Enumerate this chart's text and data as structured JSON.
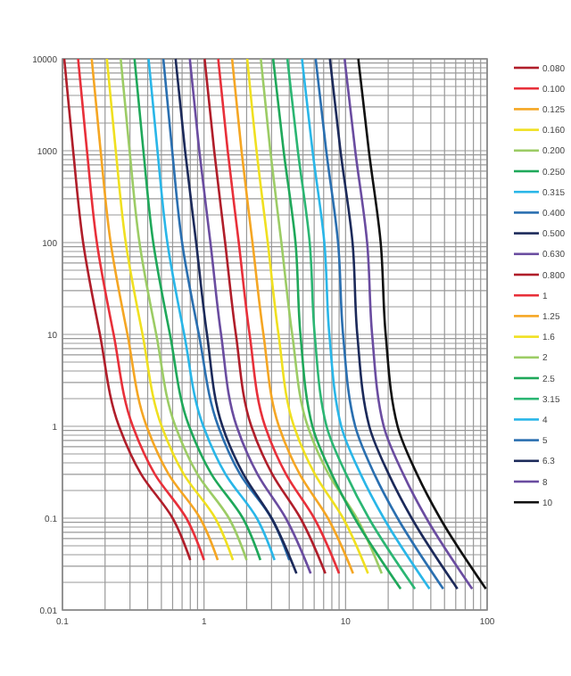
{
  "chart_data": {
    "type": "line",
    "log": "xy",
    "grid": true,
    "legend": "right",
    "line_style": "solid",
    "xlim": [
      0.1,
      100
    ],
    "ylim": [
      0.01,
      10000
    ],
    "xticks": [
      {
        "value": 0.1,
        "label": "0.1"
      },
      {
        "value": 0.2,
        "label": null
      },
      {
        "value": 0.3,
        "label": null
      },
      {
        "value": 0.4,
        "label": null
      },
      {
        "value": 0.5,
        "label": null
      },
      {
        "value": 0.6,
        "label": null
      },
      {
        "value": 0.7,
        "label": null
      },
      {
        "value": 0.8,
        "label": null
      },
      {
        "value": 0.9,
        "label": null
      },
      1,
      {
        "value": 2,
        "label": null
      },
      {
        "value": 3,
        "label": null
      },
      {
        "value": 4,
        "label": null
      },
      {
        "value": 5,
        "label": null
      },
      {
        "value": 6,
        "label": null
      },
      {
        "value": 7,
        "label": null
      },
      {
        "value": 8,
        "label": null
      },
      {
        "value": 9,
        "label": null
      },
      10,
      {
        "value": 20,
        "label": null
      },
      {
        "value": 30,
        "label": null
      },
      {
        "value": 40,
        "label": null
      },
      {
        "value": 50,
        "label": null
      },
      {
        "value": 60,
        "label": null
      },
      {
        "value": 70,
        "label": null
      },
      {
        "value": 80,
        "label": null
      },
      {
        "value": 90,
        "label": null
      },
      100
    ],
    "yticks": [
      {
        "value": 0.01,
        "label": "0.01"
      },
      {
        "value": 0.02,
        "label": null
      },
      {
        "value": 0.03,
        "label": null
      },
      {
        "value": 0.04,
        "label": null
      },
      {
        "value": 0.05,
        "label": null
      },
      {
        "value": 0.06,
        "label": null
      },
      {
        "value": 0.07,
        "label": null
      },
      {
        "value": 0.08,
        "label": null
      },
      {
        "value": 0.09,
        "label": null
      },
      {
        "value": 0.1,
        "label": "0.1"
      },
      {
        "value": 0.2,
        "label": null
      },
      {
        "value": 0.3,
        "label": null
      },
      {
        "value": 0.4,
        "label": null
      },
      {
        "value": 0.5,
        "label": null
      },
      {
        "value": 0.6,
        "label": null
      },
      {
        "value": 0.7,
        "label": null
      },
      {
        "value": 0.8,
        "label": null
      },
      {
        "value": 0.9,
        "label": null
      },
      1,
      {
        "value": 2,
        "label": null
      },
      {
        "value": 3,
        "label": null
      },
      {
        "value": 4,
        "label": null
      },
      {
        "value": 5,
        "label": null
      },
      {
        "value": 6,
        "label": null
      },
      {
        "value": 7,
        "label": null
      },
      {
        "value": 8,
        "label": null
      },
      {
        "value": 9,
        "label": null
      },
      10,
      {
        "value": 20,
        "label": null
      },
      {
        "value": 30,
        "label": null
      },
      {
        "value": 40,
        "label": null
      },
      {
        "value": 50,
        "label": null
      },
      {
        "value": 60,
        "label": null
      },
      {
        "value": 70,
        "label": null
      },
      {
        "value": 80,
        "label": null
      },
      {
        "value": 90,
        "label": null
      },
      100,
      {
        "value": 200,
        "label": null
      },
      {
        "value": 300,
        "label": null
      },
      {
        "value": 400,
        "label": null
      },
      {
        "value": 500,
        "label": null
      },
      {
        "value": 600,
        "label": null
      },
      {
        "value": 700,
        "label": null
      },
      {
        "value": 800,
        "label": null
      },
      {
        "value": 900,
        "label": null
      },
      1000,
      {
        "value": 2000,
        "label": null
      },
      {
        "value": 3000,
        "label": null
      },
      {
        "value": 4000,
        "label": null
      },
      {
        "value": 5000,
        "label": null
      },
      {
        "value": 6000,
        "label": null
      },
      {
        "value": 7000,
        "label": null
      },
      {
        "value": 8000,
        "label": null
      },
      {
        "value": 9000,
        "label": null
      },
      10000
    ],
    "series": [
      {
        "name": "0.080",
        "color": "#b01e2a",
        "x": [
          0.103,
          0.119,
          0.14,
          0.184,
          0.251,
          0.36,
          0.6,
          0.8
        ],
        "values": [
          10000,
          1000,
          100,
          10,
          1,
          0.3,
          0.1,
          0.035
        ]
      },
      {
        "name": "0.100",
        "color": "#e8303a",
        "x": [
          0.129,
          0.149,
          0.175,
          0.23,
          0.314,
          0.45,
          0.75,
          1.0
        ],
        "values": [
          10000,
          1000,
          100,
          10,
          1,
          0.3,
          0.1,
          0.035
        ]
      },
      {
        "name": "0.125",
        "color": "#f5a623",
        "x": [
          0.161,
          0.186,
          0.219,
          0.288,
          0.393,
          0.563,
          0.938,
          1.25
        ],
        "values": [
          10000,
          1000,
          100,
          10,
          1,
          0.3,
          0.1,
          0.035
        ]
      },
      {
        "name": "0.160",
        "color": "#f0e020",
        "x": [
          0.206,
          0.238,
          0.28,
          0.368,
          0.502,
          0.72,
          1.2,
          1.6
        ],
        "values": [
          10000,
          1000,
          100,
          10,
          1,
          0.3,
          0.1,
          0.035
        ]
      },
      {
        "name": "0.200",
        "color": "#9ccc65",
        "x": [
          0.258,
          0.298,
          0.35,
          0.46,
          0.628,
          0.9,
          1.5,
          2
        ],
        "values": [
          10000,
          1000,
          100,
          10,
          1,
          0.3,
          0.1,
          0.035
        ]
      },
      {
        "name": "0.250",
        "color": "#1fa85a",
        "x": [
          0.323,
          0.373,
          0.438,
          0.575,
          0.785,
          1.13,
          1.88,
          2.5
        ],
        "values": [
          10000,
          1000,
          100,
          10,
          1,
          0.3,
          0.1,
          0.035
        ]
      },
      {
        "name": "0.315",
        "color": "#29b6e8",
        "x": [
          0.406,
          0.469,
          0.551,
          0.725,
          0.989,
          1.42,
          2.36,
          3.15
        ],
        "values": [
          10000,
          1000,
          100,
          10,
          1,
          0.3,
          0.1,
          0.035
        ]
      },
      {
        "name": "0.400",
        "color": "#2a6fb0",
        "x": [
          0.516,
          0.596,
          0.7,
          0.92,
          1.26,
          1.8,
          3,
          4
        ],
        "values": [
          10000,
          1000,
          100,
          10,
          1,
          0.3,
          0.1,
          0.035
        ]
      },
      {
        "name": "0.500",
        "color": "#1c2a5a",
        "x": [
          0.63,
          0.735,
          0.88,
          1.05,
          1.35,
          1.9,
          3,
          4.5
        ],
        "values": [
          10000,
          1000,
          100,
          10,
          1,
          0.3,
          0.1,
          0.025
        ]
      },
      {
        "name": "0.630",
        "color": "#6a4ca0",
        "x": [
          0.794,
          0.926,
          1.11,
          1.32,
          1.7,
          2.39,
          3.78,
          5.67
        ],
        "values": [
          10000,
          1000,
          100,
          10,
          1,
          0.3,
          0.1,
          0.025
        ]
      },
      {
        "name": "0.800",
        "color": "#b01e2a",
        "x": [
          1.01,
          1.18,
          1.41,
          1.68,
          2.16,
          3.04,
          4.8,
          7.2
        ],
        "values": [
          10000,
          1000,
          100,
          10,
          1,
          0.3,
          0.1,
          0.025
        ]
      },
      {
        "name": "1",
        "color": "#e8303a",
        "x": [
          1.26,
          1.47,
          1.76,
          2.1,
          2.7,
          3.8,
          6,
          9
        ],
        "values": [
          10000,
          1000,
          100,
          10,
          1,
          0.3,
          0.1,
          0.025
        ]
      },
      {
        "name": "1.25",
        "color": "#f5a623",
        "x": [
          1.58,
          1.84,
          2.2,
          2.63,
          3.38,
          4.75,
          7.5,
          11.3
        ],
        "values": [
          10000,
          1000,
          100,
          10,
          1,
          0.3,
          0.1,
          0.025
        ]
      },
      {
        "name": "1.6",
        "color": "#f0e020",
        "x": [
          2.02,
          2.35,
          2.82,
          3.36,
          4.32,
          6.08,
          9.6,
          14.4
        ],
        "values": [
          10000,
          1000,
          100,
          10,
          1,
          0.3,
          0.1,
          0.025
        ]
      },
      {
        "name": "2",
        "color": "#9ccc65",
        "x": [
          2.52,
          2.94,
          3.52,
          4.2,
          5.4,
          7.6,
          12,
          18
        ],
        "values": [
          10000,
          1000,
          100,
          10,
          1,
          0.3,
          0.1,
          0.025
        ]
      },
      {
        "name": "2.5",
        "color": "#1fa85a",
        "x": [
          3.08,
          3.65,
          4.43,
          4.8,
          5.83,
          8,
          11.6,
          24.5
        ],
        "values": [
          10000,
          1000,
          100,
          10,
          1,
          0.3,
          0.1,
          0.017
        ]
      },
      {
        "name": "3.15",
        "color": "#2bb673",
        "x": [
          3.88,
          4.6,
          5.58,
          6.05,
          7.34,
          10.1,
          14.6,
          30.9
        ],
        "values": [
          10000,
          1000,
          100,
          10,
          1,
          0.3,
          0.1,
          0.017
        ]
      },
      {
        "name": "4",
        "color": "#29b6e8",
        "x": [
          4.92,
          5.84,
          7.08,
          7.68,
          9.32,
          12.8,
          18.6,
          39.2
        ],
        "values": [
          10000,
          1000,
          100,
          10,
          1,
          0.3,
          0.1,
          0.017
        ]
      },
      {
        "name": "5",
        "color": "#2a6fb0",
        "x": [
          6.15,
          7.3,
          8.85,
          9.6,
          11.7,
          16,
          23.3,
          49
        ],
        "values": [
          10000,
          1000,
          100,
          10,
          1,
          0.3,
          0.1,
          0.017
        ]
      },
      {
        "name": "6.3",
        "color": "#1c2a5a",
        "x": [
          7.75,
          9.2,
          11.2,
          12.1,
          14.7,
          20.2,
          29.3,
          61.7
        ],
        "values": [
          10000,
          1000,
          100,
          10,
          1,
          0.3,
          0.1,
          0.017
        ]
      },
      {
        "name": "8",
        "color": "#6a4ca0",
        "x": [
          9.84,
          11.7,
          14.2,
          15.4,
          18.6,
          25.6,
          37.2,
          78.4
        ],
        "values": [
          10000,
          1000,
          100,
          10,
          1,
          0.3,
          0.1,
          0.017
        ]
      },
      {
        "name": "10",
        "color": "#111111",
        "x": [
          12.3,
          14.6,
          17.7,
          19.2,
          23.3,
          32,
          46.5,
          98
        ],
        "values": [
          10000,
          1000,
          100,
          10,
          1,
          0.3,
          0.1,
          0.017
        ]
      }
    ]
  }
}
